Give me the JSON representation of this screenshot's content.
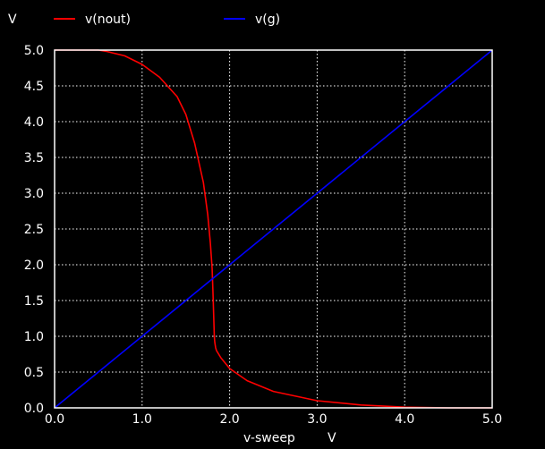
{
  "chart_data": {
    "type": "line",
    "y_unit_label": "V",
    "xlabel": "v-sweep",
    "x_unit_label": "V",
    "xlim": [
      0,
      5
    ],
    "ylim": [
      0,
      5
    ],
    "x_ticks": [
      "0.0",
      "1.0",
      "2.0",
      "3.0",
      "4.0",
      "5.0"
    ],
    "y_ticks": [
      "0.0",
      "0.5",
      "1.0",
      "1.5",
      "2.0",
      "2.5",
      "3.0",
      "3.5",
      "4.0",
      "4.5",
      "5.0"
    ],
    "grid": true,
    "legend_position": "top",
    "series": [
      {
        "name": "v(nout)",
        "color": "#ff0000",
        "x": [
          0.0,
          0.3,
          0.5,
          0.6,
          0.8,
          1.0,
          1.2,
          1.4,
          1.5,
          1.6,
          1.7,
          1.75,
          1.78,
          1.8,
          1.81,
          1.82,
          1.825,
          1.83,
          1.835,
          1.84,
          1.85,
          1.9,
          2.0,
          2.2,
          2.5,
          3.0,
          3.5,
          4.0,
          4.5,
          5.0
        ],
        "y": [
          5.0,
          5.0,
          5.0,
          4.98,
          4.92,
          4.8,
          4.62,
          4.35,
          4.1,
          3.7,
          3.15,
          2.7,
          2.3,
          1.95,
          1.6,
          1.2,
          1.0,
          0.92,
          0.88,
          0.84,
          0.8,
          0.7,
          0.55,
          0.38,
          0.23,
          0.1,
          0.04,
          0.01,
          0.0,
          0.0
        ]
      },
      {
        "name": "v(g)",
        "color": "#0000ff",
        "x": [
          0.0,
          5.0
        ],
        "y": [
          0.0,
          5.0
        ]
      }
    ]
  }
}
